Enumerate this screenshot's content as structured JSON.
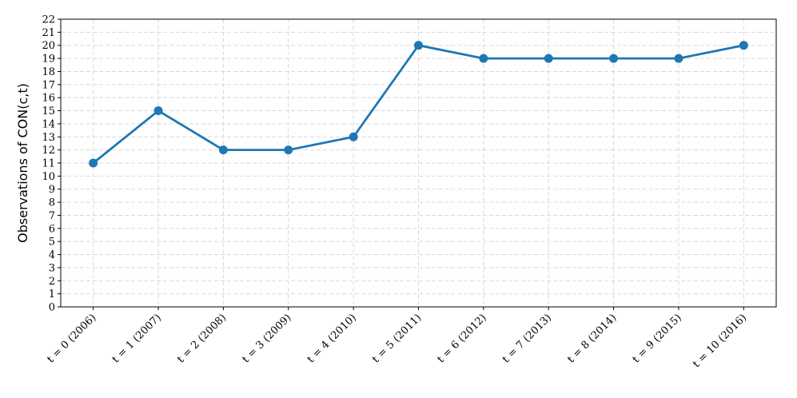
{
  "chart_data": {
    "type": "line",
    "ylabel": "Observations of CON(c,t)",
    "categories": [
      "t = 0 (2006)",
      "t = 1 (2007)",
      "t = 2 (2008)",
      "t = 3 (2009)",
      "t = 4 (2010)",
      "t = 5 (2011)",
      "t = 6 (2012)",
      "t = 7 (2013)",
      "t = 8 (2014)",
      "t = 9 (2015)",
      "t = 10 (2016)"
    ],
    "series": [
      {
        "name": "Observations",
        "color": "#1f77b4",
        "values": [
          11,
          15,
          12,
          12,
          13,
          20,
          19,
          19,
          19,
          19,
          20
        ]
      }
    ],
    "ylim": [
      0,
      22
    ],
    "yticks": [
      0,
      1,
      2,
      3,
      4,
      5,
      6,
      7,
      8,
      9,
      10,
      11,
      12,
      13,
      14,
      15,
      16,
      17,
      18,
      19,
      20,
      21,
      22
    ],
    "grid": true
  }
}
